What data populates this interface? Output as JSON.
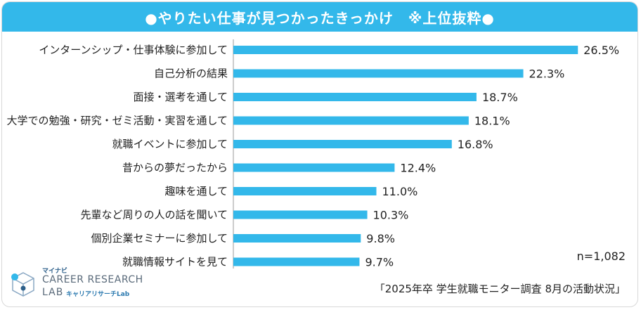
{
  "chart_data": {
    "type": "bar",
    "orientation": "horizontal",
    "title": "●やりたい仕事が見つかったきっかけ　※上位抜粋●",
    "categories": [
      "インターンシップ・仕事体験に参加して",
      "自己分析の結果",
      "面接・選考を通して",
      "大学での勉強・研究・ゼミ活動・実習を通して",
      "就職イベントに参加して",
      "昔からの夢だったから",
      "趣味を通して",
      "先輩など周りの人の話を聞いて",
      "個別企業セミナーに参加して",
      "就職情報サイトを見て"
    ],
    "values": [
      26.5,
      22.3,
      18.7,
      18.1,
      16.8,
      12.4,
      11.0,
      10.3,
      9.8,
      9.7
    ],
    "value_labels": [
      "26.5%",
      "22.3%",
      "18.7%",
      "18.1%",
      "16.8%",
      "12.4%",
      "11.0%",
      "10.3%",
      "9.8%",
      "9.7%"
    ],
    "xlim": [
      0,
      30
    ],
    "unit": "%",
    "bar_color": "#33b8ea"
  },
  "sample_size": "n=1,082",
  "source": "「2025年卒 学生就職モニター調査 8月の活動状況」",
  "logo": {
    "brand": "マイナビ",
    "line1": "CAREER RESEARCH",
    "line2": "LAB",
    "sub": "キャリアリサーチLab"
  },
  "colors": {
    "accent": "#33b8ea",
    "text": "#222222"
  }
}
